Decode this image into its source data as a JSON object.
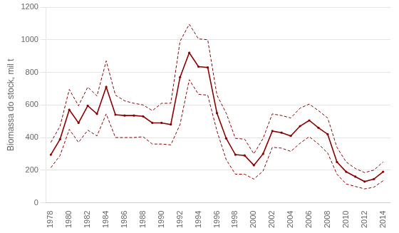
{
  "chart_data": {
    "type": "line",
    "ylabel": "Biomassa do stock, mil t",
    "x": [
      1978,
      1979,
      1980,
      1981,
      1982,
      1983,
      1984,
      1985,
      1986,
      1987,
      1988,
      1989,
      1990,
      1991,
      1992,
      1993,
      1994,
      1995,
      1996,
      1997,
      1998,
      1999,
      2000,
      2001,
      2002,
      2003,
      2004,
      2005,
      2006,
      2007,
      2008,
      2009,
      2010,
      2011,
      2012,
      2013,
      2014
    ],
    "series": [
      {
        "color": "#8B0000",
        "line_style": "dashed",
        "values": [
          370,
          470,
          695,
          595,
          710,
          655,
          870,
          660,
          625,
          610,
          600,
          565,
          610,
          610,
          990,
          1095,
          1005,
          1000,
          660,
          550,
          395,
          390,
          300,
          395,
          545,
          535,
          520,
          580,
          605,
          565,
          520,
          340,
          250,
          210,
          185,
          200,
          250
        ]
      },
      {
        "color": "#8B0000",
        "line_style": "dashed",
        "values": [
          215,
          290,
          450,
          370,
          445,
          410,
          545,
          400,
          400,
          400,
          405,
          360,
          360,
          355,
          480,
          755,
          665,
          660,
          440,
          265,
          175,
          175,
          145,
          195,
          340,
          335,
          315,
          365,
          405,
          360,
          305,
          175,
          115,
          100,
          85,
          95,
          135
        ]
      },
      {
        "color": "#8B0000",
        "line_style": "solid",
        "marker": "circle",
        "values": [
          295,
          390,
          570,
          490,
          595,
          545,
          710,
          540,
          535,
          535,
          530,
          490,
          490,
          480,
          770,
          920,
          835,
          830,
          550,
          395,
          295,
          290,
          230,
          300,
          440,
          430,
          410,
          470,
          505,
          460,
          420,
          250,
          190,
          160,
          130,
          145,
          190
        ]
      }
    ],
    "xlim": [
      1977.5,
      2014.8
    ],
    "xticks": [
      1978,
      1980,
      1982,
      1984,
      1986,
      1988,
      1990,
      1992,
      1994,
      1996,
      1998,
      2000,
      2002,
      2004,
      2006,
      2008,
      2010,
      2012,
      2014
    ],
    "ylim": [
      0,
      1200
    ],
    "yticks": [
      0,
      200,
      400,
      600,
      800,
      1000,
      1200
    ],
    "grid": "y"
  }
}
